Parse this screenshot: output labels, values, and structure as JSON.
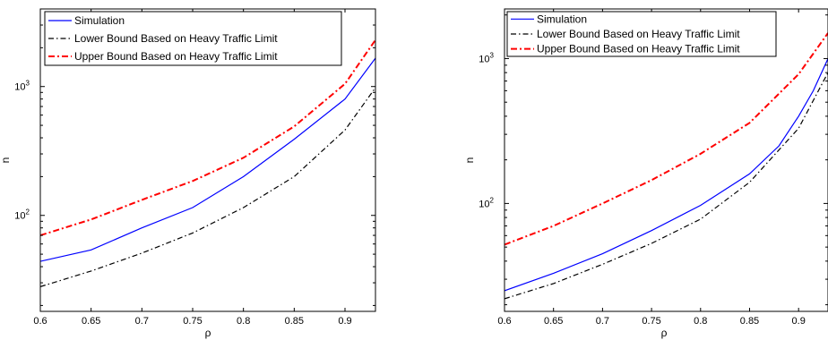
{
  "chart_data": [
    {
      "type": "line",
      "xlabel": "ρ",
      "ylabel": "n",
      "yscale": "log",
      "xlim": [
        0.6,
        0.93
      ],
      "ylim": [
        18,
        4000
      ],
      "xticks": [
        0.6,
        0.65,
        0.7,
        0.75,
        0.8,
        0.85,
        0.9
      ],
      "xtick_labels": [
        "0.6",
        "0.65",
        "0.7",
        "0.75",
        "0.8",
        "0.85",
        "0.9"
      ],
      "yticks": [
        100,
        1000
      ],
      "ytick_labels": [
        "10^2",
        "10^3"
      ],
      "grid": false,
      "legend_position": "top-right",
      "series": [
        {
          "name": "Simulation",
          "color": "#0000ff",
          "style": "solid",
          "x": [
            0.6,
            0.65,
            0.7,
            0.75,
            0.8,
            0.85,
            0.9,
            0.93
          ],
          "y": [
            44,
            54,
            80,
            115,
            200,
            390,
            800,
            1660
          ]
        },
        {
          "name": "Lower Bound Based on Heavy Traffic Limit",
          "color": "#000000",
          "style": "dashdot",
          "x": [
            0.6,
            0.65,
            0.7,
            0.75,
            0.8,
            0.85,
            0.9,
            0.93
          ],
          "y": [
            28,
            37,
            51,
            73,
            115,
            200,
            460,
            980
          ]
        },
        {
          "name": "Upper Bound Based on Heavy Traffic Limit",
          "color": "#ff0000",
          "style": "dashdot",
          "x": [
            0.6,
            0.65,
            0.7,
            0.75,
            0.8,
            0.85,
            0.9,
            0.93
          ],
          "y": [
            70,
            93,
            132,
            185,
            280,
            490,
            1050,
            2300
          ]
        }
      ]
    },
    {
      "type": "line",
      "xlabel": "ρ",
      "ylabel": "n",
      "yscale": "log",
      "xlim": [
        0.6,
        0.93
      ],
      "ylim": [
        18,
        2200
      ],
      "xticks": [
        0.6,
        0.65,
        0.7,
        0.75,
        0.8,
        0.85,
        0.9
      ],
      "xtick_labels": [
        "0.6",
        "0.65",
        "0.7",
        "0.75",
        "0.8",
        "0.85",
        "0.9"
      ],
      "yticks": [
        100,
        1000
      ],
      "ytick_labels": [
        "10^2",
        "10^3"
      ],
      "grid": false,
      "legend_position": "top-right",
      "series": [
        {
          "name": "Simulation",
          "color": "#0000ff",
          "style": "solid",
          "x": [
            0.6,
            0.65,
            0.7,
            0.75,
            0.8,
            0.85,
            0.88,
            0.9,
            0.915,
            0.93
          ],
          "y": [
            25,
            33,
            45,
            65,
            97,
            160,
            250,
            400,
            600,
            1000
          ]
        },
        {
          "name": "Lower Bound Based on Heavy Traffic Limit",
          "color": "#000000",
          "style": "dashdot",
          "x": [
            0.6,
            0.65,
            0.7,
            0.75,
            0.8,
            0.85,
            0.9,
            0.93
          ],
          "y": [
            22,
            28,
            38,
            53,
            78,
            140,
            330,
            800
          ]
        },
        {
          "name": "Upper Bound Based on Heavy Traffic Limit",
          "color": "#ff0000",
          "style": "dashdot",
          "x": [
            0.6,
            0.65,
            0.7,
            0.75,
            0.8,
            0.85,
            0.9,
            0.93
          ],
          "y": [
            52,
            70,
            100,
            145,
            220,
            360,
            780,
            1500
          ]
        }
      ]
    }
  ]
}
